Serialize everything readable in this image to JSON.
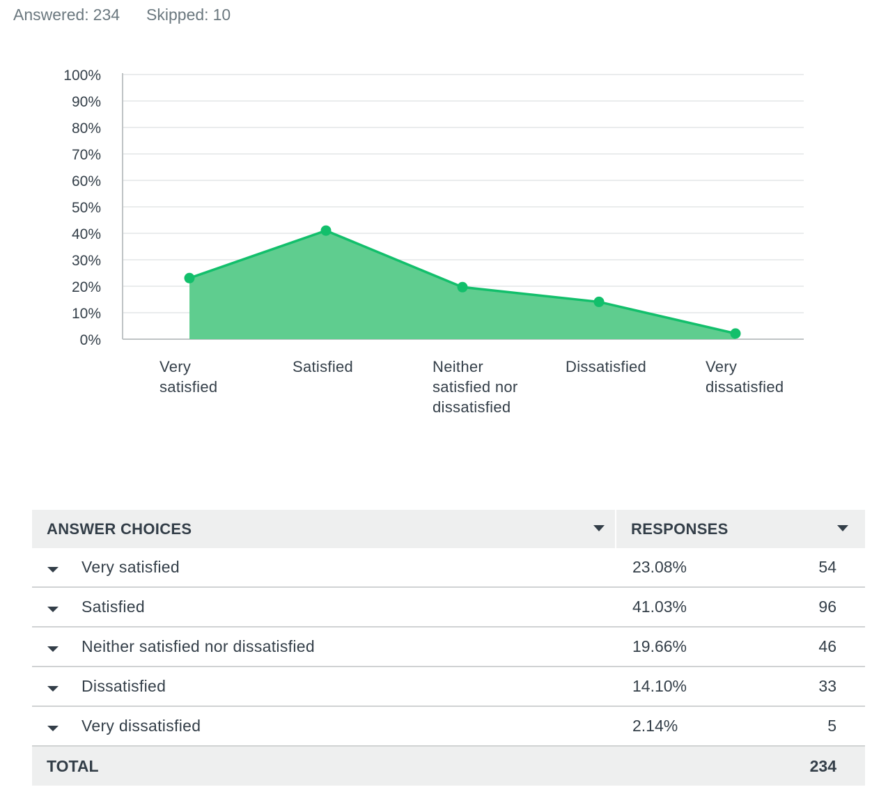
{
  "summary": {
    "answered_label": "Answered:",
    "answered_value": "234",
    "skipped_label": "Skipped:",
    "skipped_value": "10"
  },
  "chart_data": {
    "type": "area",
    "categories": [
      "Very satisfied",
      "Satisfied",
      "Neither satisfied nor dissatisfied",
      "Dissatisfied",
      "Very dissatisfied"
    ],
    "category_label_lines": [
      [
        "Very",
        "satisfied"
      ],
      [
        "Satisfied"
      ],
      [
        "Neither",
        "satisfied nor",
        "dissatisfied"
      ],
      [
        "Dissatisfied"
      ],
      [
        "Very",
        "dissatisfied"
      ]
    ],
    "values": [
      23.08,
      41.03,
      19.66,
      14.1,
      2.14
    ],
    "ylim": [
      0,
      100
    ],
    "yticks": [
      0,
      10,
      20,
      30,
      40,
      50,
      60,
      70,
      80,
      90,
      100
    ],
    "ytick_labels": [
      "0%",
      "10%",
      "20%",
      "30%",
      "40%",
      "50%",
      "60%",
      "70%",
      "80%",
      "90%",
      "100%"
    ],
    "title": "",
    "xlabel": "",
    "ylabel": "",
    "grid": true,
    "colors": {
      "fill": "#5fcd8f",
      "line": "#12bf6b",
      "grid": "#e4e6e7",
      "axis": "#bfc3c5"
    }
  },
  "table": {
    "headers": {
      "choices": "ANSWER CHOICES",
      "responses": "RESPONSES"
    },
    "rows": [
      {
        "label": "Very satisfied",
        "percent": "23.08%",
        "count": "54"
      },
      {
        "label": "Satisfied",
        "percent": "41.03%",
        "count": "96"
      },
      {
        "label": "Neither satisfied nor dissatisfied",
        "percent": "19.66%",
        "count": "46"
      },
      {
        "label": "Dissatisfied",
        "percent": "14.10%",
        "count": "33"
      },
      {
        "label": "Very dissatisfied",
        "percent": "2.14%",
        "count": "5"
      }
    ],
    "total_label": "TOTAL",
    "total_value": "234"
  }
}
